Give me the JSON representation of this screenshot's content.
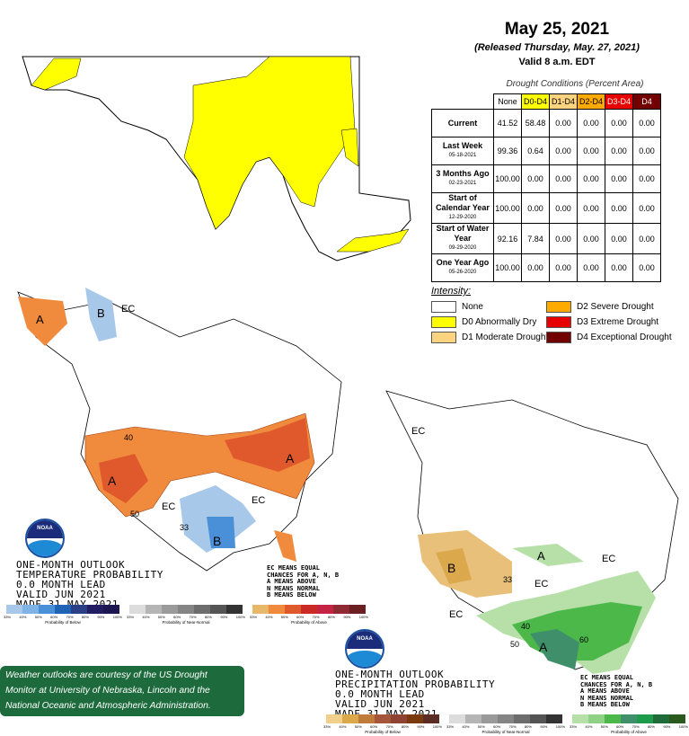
{
  "header": {
    "title": "May 25, 2021",
    "released": "(Released Thursday, May. 27, 2021)",
    "valid": "Valid 8 a.m. EDT",
    "conditions_title": "Drought Conditions (Percent Area)"
  },
  "table": {
    "columns": [
      {
        "label": "None",
        "color": "#ffffff"
      },
      {
        "label": "D0-D4",
        "color": "#ffff00"
      },
      {
        "label": "D1-D4",
        "color": "#fcd37f"
      },
      {
        "label": "D2-D4",
        "color": "#ffaa00"
      },
      {
        "label": "D3-D4",
        "color": "#e60000"
      },
      {
        "label": "D4",
        "color": "#730000"
      }
    ],
    "rows": [
      {
        "label": "Current",
        "date": "",
        "values": [
          "41.52",
          "58.48",
          "0.00",
          "0.00",
          "0.00",
          "0.00"
        ]
      },
      {
        "label": "Last Week",
        "date": "05-18-2021",
        "values": [
          "99.36",
          "0.64",
          "0.00",
          "0.00",
          "0.00",
          "0.00"
        ]
      },
      {
        "label": "3 Months Ago",
        "date": "02-23-2021",
        "values": [
          "100.00",
          "0.00",
          "0.00",
          "0.00",
          "0.00",
          "0.00"
        ]
      },
      {
        "label": "Start of Calendar Year",
        "date": "12-29-2020",
        "values": [
          "100.00",
          "0.00",
          "0.00",
          "0.00",
          "0.00",
          "0.00"
        ]
      },
      {
        "label": "Start of Water Year",
        "date": "09-29-2020",
        "values": [
          "92.16",
          "7.84",
          "0.00",
          "0.00",
          "0.00",
          "0.00"
        ]
      },
      {
        "label": "One Year Ago",
        "date": "05-26-2020",
        "values": [
          "100.00",
          "0.00",
          "0.00",
          "0.00",
          "0.00",
          "0.00"
        ]
      }
    ]
  },
  "intensity": {
    "title": "Intensity:",
    "items": [
      {
        "label": "None",
        "color": "#ffffff"
      },
      {
        "label": "D0 Abnormally Dry",
        "color": "#ffff00"
      },
      {
        "label": "D1 Moderate Drought",
        "color": "#fcd37f"
      },
      {
        "label": "D2 Severe Drought",
        "color": "#ffaa00"
      },
      {
        "label": "D3 Extreme Drought",
        "color": "#e60000"
      },
      {
        "label": "D4 Exceptional Drought",
        "color": "#730000"
      }
    ]
  },
  "temp_outlook": {
    "lines": [
      "ONE-MONTH OUTLOOK",
      "TEMPERATURE PROBABILITY",
      "0.0 MONTH LEAD",
      "VALID JUN 2021",
      "MADE 31 MAY 2021"
    ],
    "key": [
      "EC MEANS EQUAL",
      "CHANCES FOR A, N, B",
      "A MEANS ABOVE",
      "N MEANS NORMAL",
      "B MEANS BELOW"
    ],
    "map_labels": {
      "ec": "EC",
      "a": "A",
      "b": "B",
      "c40": "40",
      "c50": "50",
      "c33": "33"
    },
    "bars": [
      {
        "label": "Probability of Below",
        "colors": [
          "#a8c8ea",
          "#7fb2e5",
          "#4a90d9",
          "#1f63b5",
          "#2a3f85",
          "#231d63",
          "#1c1750"
        ]
      },
      {
        "label": "Probability of Near-Normal",
        "colors": [
          "#dcdcdc",
          "#b5b5b5",
          "#9a9a9a",
          "#858585",
          "#6d6d6d",
          "#555555",
          "#333333"
        ]
      },
      {
        "label": "Probability of Above",
        "colors": [
          "#e8b86a",
          "#f08a3c",
          "#e0592c",
          "#cc2a26",
          "#c42343",
          "#8f2a35",
          "#6b1f22"
        ]
      }
    ],
    "ticks": [
      "33%",
      "40%",
      "50%",
      "60%",
      "70%",
      "80%",
      "90%",
      "100%"
    ]
  },
  "precip_outlook": {
    "lines": [
      "ONE-MONTH OUTLOOK",
      "PRECIPITATION PROBABILITY",
      "0.0 MONTH LEAD",
      "VALID JUN 2021",
      "MADE 31 MAY 2021"
    ],
    "key": [
      "EC MEANS EQUAL",
      "CHANCES FOR A, N, B",
      "A MEANS ABOVE",
      "N MEANS NORMAL",
      "B MEANS BELOW"
    ],
    "map_labels": {
      "ec": "EC",
      "a": "A",
      "b": "B",
      "c40": "40",
      "c50": "50",
      "c60": "60",
      "c33": "33"
    },
    "bars": [
      {
        "label": "Probability of Below",
        "colors": [
          "#f0d08a",
          "#dba84c",
          "#c07a3a",
          "#a5563a",
          "#8f4332",
          "#7a3a10",
          "#5a2c22"
        ]
      },
      {
        "label": "Probability of Near-Normal",
        "colors": [
          "#dcdcdc",
          "#b5b5b5",
          "#9a9a9a",
          "#858585",
          "#6d6d6d",
          "#555555",
          "#333333"
        ]
      },
      {
        "label": "Probability of Above",
        "colors": [
          "#b6e0a8",
          "#8fd186",
          "#4cb84a",
          "#3f8f6a",
          "#1d9a4a",
          "#1f6b3a",
          "#2a5a1e"
        ]
      }
    ],
    "ticks": [
      "33%",
      "40%",
      "50%",
      "60%",
      "70%",
      "80%",
      "90%",
      "100%"
    ]
  },
  "noaa_logo": "NOAA",
  "note": "Weather outlooks are courtesy of the US Drought Monitor at University of Nebraska, Lincoln and the National Oceanic and Atmospheric Administration."
}
